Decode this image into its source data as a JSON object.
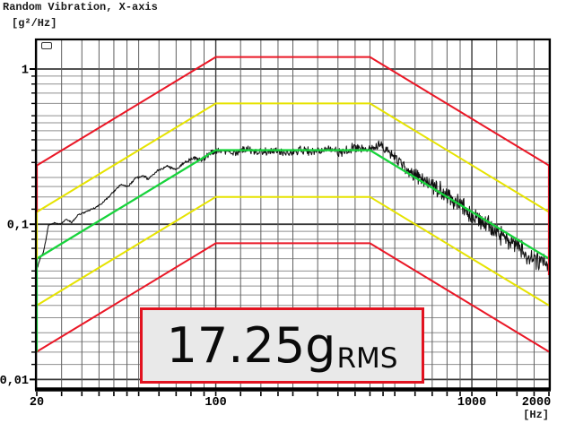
{
  "chart_data": {
    "type": "line",
    "title": "Random Vibration, X-axis",
    "ylabel": "[g²/Hz]",
    "xlabel": "[Hz]",
    "x_scale": "log",
    "y_scale": "log",
    "xlim": [
      20,
      2000
    ],
    "ylim": [
      0.0088,
      1.53
    ],
    "x_ticks": {
      "values": [
        20,
        100,
        1000,
        2000
      ],
      "labels": [
        "20",
        "100",
        "1000",
        "2000"
      ],
      "dx": [
        0,
        0,
        0,
        -14
      ]
    },
    "y_ticks": {
      "values": [
        1,
        0.1,
        0.01
      ],
      "labels": [
        "1",
        "0,1",
        "0,01"
      ]
    },
    "grid": {
      "minor_multipliers": [
        1,
        1.25,
        1.5,
        1.75,
        2,
        2.5,
        3,
        3.5,
        4,
        4.5,
        5,
        6,
        7,
        8,
        9
      ],
      "x_major": [
        100,
        1000
      ],
      "y_major": [
        1,
        0.1,
        0.01
      ],
      "y_gridline_max": 1.0,
      "minor_color": "#8f8f8f",
      "vertical_color": "#5f5f5f",
      "major_color": "#383838"
    },
    "limits": [
      {
        "name": "abort-limit-upper-plus-6dB",
        "color": "#ea1726",
        "width": 2,
        "points": [
          [
            20,
            0.239
          ],
          [
            100,
            1.194
          ],
          [
            400,
            1.194
          ],
          [
            2000,
            0.239
          ]
        ]
      },
      {
        "name": "abort-limit-lower-minus-6dB",
        "color": "#ea1726",
        "width": 2,
        "points": [
          [
            20,
            0.0151
          ],
          [
            100,
            0.0754
          ],
          [
            400,
            0.0754
          ],
          [
            2000,
            0.0151
          ]
        ]
      },
      {
        "name": "warning-limit-upper-plus-3dB",
        "color": "#e6e300",
        "width": 2,
        "points": [
          [
            20,
            0.12
          ],
          [
            100,
            0.6
          ],
          [
            400,
            0.6
          ],
          [
            2000,
            0.12
          ]
        ]
      },
      {
        "name": "warning-limit-lower-minus-3dB",
        "color": "#e6e300",
        "width": 2,
        "points": [
          [
            20,
            0.03
          ],
          [
            100,
            0.15
          ],
          [
            400,
            0.15
          ],
          [
            2000,
            0.03
          ]
        ]
      }
    ],
    "reference": {
      "name": "reference-profile",
      "color": "#17d33b",
      "width": 2.3,
      "points": [
        [
          20,
          0.06
        ],
        [
          100,
          0.3
        ],
        [
          400,
          0.3
        ],
        [
          2000,
          0.06
        ]
      ]
    },
    "edge_segments": [
      {
        "f": 20,
        "from": 0.239,
        "to": 0.12,
        "color": "#ea1726",
        "width": 2.2
      },
      {
        "f": 20,
        "from": 0.12,
        "to": 0.06,
        "color": "#e6e300",
        "width": 2.2
      },
      {
        "f": 20,
        "from": 0.06,
        "to": 0.0151,
        "color": "#17d33b",
        "width": 2.2
      },
      {
        "f": 2000,
        "from": 0.239,
        "to": 0.047,
        "color": "#ea1726",
        "width": 2.2
      }
    ],
    "measured": {
      "name": "control-signal",
      "color": "#101010",
      "width": 1.05,
      "samples": 1000,
      "noise_seed": 12,
      "noise_profile_decades": [
        [
          20,
          0.004
        ],
        [
          45,
          0.006
        ],
        [
          80,
          0.01
        ],
        [
          100,
          0.02
        ],
        [
          250,
          0.024
        ],
        [
          400,
          0.03
        ],
        [
          550,
          0.042
        ],
        [
          800,
          0.05
        ],
        [
          1200,
          0.058
        ],
        [
          2000,
          0.064
        ]
      ],
      "anchors": [
        [
          20,
          0.051
        ],
        [
          20.6,
          0.06
        ],
        [
          21.2,
          0.066
        ],
        [
          21.7,
          0.079
        ],
        [
          22.2,
          0.099
        ],
        [
          23.4,
          0.102
        ],
        [
          24.8,
          0.1
        ],
        [
          26,
          0.108
        ],
        [
          27.4,
          0.103
        ],
        [
          29,
          0.115
        ],
        [
          31,
          0.12
        ],
        [
          33.5,
          0.127
        ],
        [
          36,
          0.136
        ],
        [
          39,
          0.156
        ],
        [
          42.5,
          0.18
        ],
        [
          45.5,
          0.175
        ],
        [
          48.5,
          0.198
        ],
        [
          52.5,
          0.205
        ],
        [
          54.5,
          0.195
        ],
        [
          59,
          0.22
        ],
        [
          64,
          0.235
        ],
        [
          70,
          0.227
        ],
        [
          76,
          0.252
        ],
        [
          82,
          0.267
        ],
        [
          88,
          0.258
        ],
        [
          95,
          0.288
        ],
        [
          104,
          0.3
        ],
        [
          116,
          0.286
        ],
        [
          131,
          0.304
        ],
        [
          148,
          0.291
        ],
        [
          167,
          0.299
        ],
        [
          189,
          0.285
        ],
        [
          214,
          0.302
        ],
        [
          239,
          0.291
        ],
        [
          272,
          0.308
        ],
        [
          308,
          0.29
        ],
        [
          349,
          0.314
        ],
        [
          392,
          0.299
        ],
        [
          440,
          0.322
        ],
        [
          480,
          0.289
        ],
        [
          516,
          0.258
        ],
        [
          585,
          0.219
        ],
        [
          660,
          0.19
        ],
        [
          748,
          0.165
        ],
        [
          846,
          0.145
        ],
        [
          958,
          0.122
        ],
        [
          1085,
          0.106
        ],
        [
          1228,
          0.091
        ],
        [
          1390,
          0.079
        ],
        [
          1574,
          0.069
        ],
        [
          1782,
          0.06
        ],
        [
          2000,
          0.053
        ]
      ]
    },
    "annotation": {
      "value": "17.25g",
      "subscript": "RMS",
      "box_fill": "#e9e9e9",
      "box_border": "#e21320"
    }
  }
}
